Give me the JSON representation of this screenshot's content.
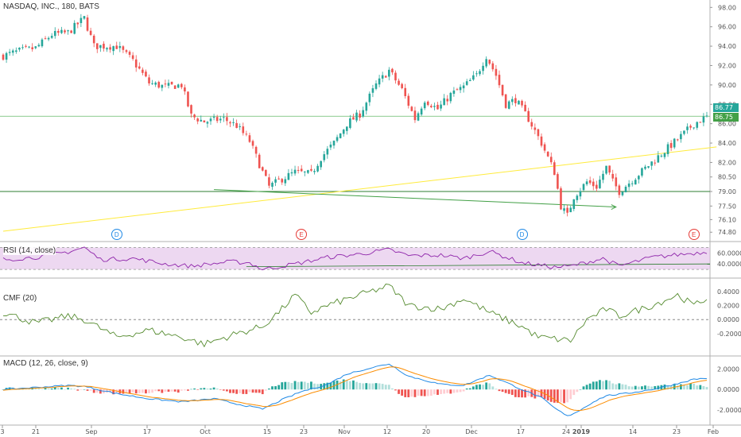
{
  "title": "NASDAQ, INC., 180, BATS",
  "colors": {
    "up": "#26a69a",
    "down": "#ef5350",
    "rsi": "#8e24aa",
    "cmf": "#558b2f",
    "macd": "#1e88e5",
    "signal": "#fb8c00",
    "trend_yellow": "#ffeb3b",
    "trend_green": "#43a047",
    "hline": "#2e7d32",
    "price_line": "#66bb6a",
    "dividend": "#1e88e5",
    "earnings": "#e53935"
  },
  "price_tags": {
    "current": "86.77",
    "other": "86.75"
  },
  "panes": {
    "rsi": {
      "label": "RSI (14, close)",
      "ticks": [
        "60.0000",
        "40.0000"
      ],
      "band": [
        30,
        70
      ]
    },
    "cmf": {
      "label": "CMF (20)",
      "ticks": [
        "0.4000",
        "0.2000",
        "0.0000",
        "-0.2000"
      ]
    },
    "macd": {
      "label": "MACD (12, 26, close, 9)",
      "ticks": [
        "2.0000",
        "0.0000",
        "-2.0000"
      ]
    }
  },
  "events": [
    {
      "label": "D",
      "type": "dividend",
      "date_index": 35
    },
    {
      "label": "E",
      "type": "earnings",
      "date_index": 92
    },
    {
      "label": "D",
      "type": "dividend",
      "date_index": 160
    },
    {
      "label": "E",
      "type": "earnings",
      "date_index": 213
    }
  ],
  "chart_data": {
    "type": "candlestick",
    "title": "NASDAQ, INC., 180, BATS",
    "ylim": [
      74.0,
      98.6
    ],
    "y_ticks": [
      "98.00",
      "96.00",
      "94.00",
      "92.00",
      "90.00",
      "88.00",
      "86.00",
      "84.00",
      "82.00",
      "80.50",
      "79.00",
      "77.50",
      "76.10",
      "74.80"
    ],
    "x_tick_labels": [
      "3",
      "21",
      "Sep",
      "17",
      "Oct",
      "15",
      "23",
      "Nov",
      "12",
      "20",
      "Dec",
      "17",
      "24",
      "2019",
      "14",
      "23",
      "Feb"
    ],
    "price_keypoints": [
      [
        0,
        93.0
      ],
      [
        5,
        93.5
      ],
      [
        10,
        93.8
      ],
      [
        15,
        95.2
      ],
      [
        20,
        95.4
      ],
      [
        25,
        96.9
      ],
      [
        28,
        94.0
      ],
      [
        35,
        94.0
      ],
      [
        40,
        92.5
      ],
      [
        45,
        90.2
      ],
      [
        50,
        89.8
      ],
      [
        55,
        90.0
      ],
      [
        58,
        86.8
      ],
      [
        62,
        86.2
      ],
      [
        68,
        86.5
      ],
      [
        72,
        85.8
      ],
      [
        76,
        84.2
      ],
      [
        80,
        81.0
      ],
      [
        82,
        79.5
      ],
      [
        86,
        80.3
      ],
      [
        90,
        81.0
      ],
      [
        95,
        80.8
      ],
      [
        98,
        82.5
      ],
      [
        102,
        84.0
      ],
      [
        106,
        86.0
      ],
      [
        110,
        87.0
      ],
      [
        115,
        90.0
      ],
      [
        119,
        91.5
      ],
      [
        123,
        89.5
      ],
      [
        127,
        86.5
      ],
      [
        130,
        88.5
      ],
      [
        134,
        87.5
      ],
      [
        138,
        89.0
      ],
      [
        142,
        89.8
      ],
      [
        146,
        91.0
      ],
      [
        149,
        93.0
      ],
      [
        152,
        91.0
      ],
      [
        155,
        88.0
      ],
      [
        158,
        88.5
      ],
      [
        162,
        86.5
      ],
      [
        166,
        84.0
      ],
      [
        170,
        81.0
      ],
      [
        172,
        77.5
      ],
      [
        174,
        76.5
      ],
      [
        176,
        78.5
      ],
      [
        180,
        80.0
      ],
      [
        183,
        79.5
      ],
      [
        186,
        81.5
      ],
      [
        188,
        80.0
      ],
      [
        190,
        79.0
      ],
      [
        195,
        80.5
      ],
      [
        200,
        82.0
      ],
      [
        205,
        83.5
      ],
      [
        210,
        85.0
      ],
      [
        213,
        86.0
      ],
      [
        217,
        86.7
      ]
    ],
    "horizontal_lines": [
      86.77,
      79.0
    ],
    "trend_lines": [
      {
        "color": "yellow",
        "from": [
          0,
          74.9
        ],
        "to": [
          220,
          83.6
        ]
      },
      {
        "color": "green",
        "from": [
          65,
          79.2
        ],
        "to": [
          189,
          77.4
        ]
      }
    ],
    "rsi_keypoints": [
      [
        0,
        48
      ],
      [
        10,
        52
      ],
      [
        20,
        62
      ],
      [
        25,
        70
      ],
      [
        30,
        48
      ],
      [
        40,
        50
      ],
      [
        50,
        40
      ],
      [
        58,
        36
      ],
      [
        70,
        44
      ],
      [
        76,
        42
      ],
      [
        80,
        30
      ],
      [
        90,
        40
      ],
      [
        100,
        52
      ],
      [
        110,
        58
      ],
      [
        119,
        66
      ],
      [
        125,
        55
      ],
      [
        135,
        56
      ],
      [
        142,
        50
      ],
      [
        150,
        63
      ],
      [
        160,
        42
      ],
      [
        170,
        34
      ],
      [
        175,
        36
      ],
      [
        185,
        50
      ],
      [
        190,
        36
      ],
      [
        200,
        52
      ],
      [
        210,
        58
      ],
      [
        217,
        62
      ]
    ],
    "cmf_keypoints": [
      [
        0,
        0.1
      ],
      [
        10,
        -0.05
      ],
      [
        20,
        0.05
      ],
      [
        25,
        0.0
      ],
      [
        35,
        -0.25
      ],
      [
        45,
        -0.15
      ],
      [
        55,
        -0.25
      ],
      [
        62,
        -0.35
      ],
      [
        72,
        -0.2
      ],
      [
        80,
        -0.1
      ],
      [
        86,
        0.15
      ],
      [
        90,
        0.35
      ],
      [
        95,
        0.1
      ],
      [
        100,
        0.2
      ],
      [
        110,
        0.35
      ],
      [
        119,
        0.48
      ],
      [
        125,
        0.2
      ],
      [
        135,
        0.15
      ],
      [
        142,
        0.3
      ],
      [
        150,
        0.1
      ],
      [
        160,
        -0.1
      ],
      [
        165,
        -0.25
      ],
      [
        175,
        -0.3
      ],
      [
        180,
        0.0
      ],
      [
        186,
        0.15
      ],
      [
        190,
        0.05
      ],
      [
        200,
        0.2
      ],
      [
        208,
        0.35
      ],
      [
        213,
        0.2
      ],
      [
        217,
        0.3
      ]
    ],
    "macd_keypoints": [
      [
        0,
        0.0
      ],
      [
        10,
        0.2
      ],
      [
        20,
        0.4
      ],
      [
        25,
        0.3
      ],
      [
        35,
        -0.4
      ],
      [
        45,
        -0.9
      ],
      [
        55,
        -1.2
      ],
      [
        65,
        -0.9
      ],
      [
        72,
        -1.4
      ],
      [
        80,
        -1.9
      ],
      [
        86,
        -1.0
      ],
      [
        92,
        -0.2
      ],
      [
        100,
        0.5
      ],
      [
        106,
        1.5
      ],
      [
        112,
        2.0
      ],
      [
        119,
        2.5
      ],
      [
        125,
        1.3
      ],
      [
        135,
        0.5
      ],
      [
        142,
        0.4
      ],
      [
        150,
        1.4
      ],
      [
        160,
        0.0
      ],
      [
        166,
        -0.8
      ],
      [
        170,
        -1.8
      ],
      [
        174,
        -2.6
      ],
      [
        178,
        -2.0
      ],
      [
        182,
        -1.2
      ],
      [
        186,
        -0.6
      ],
      [
        192,
        -0.4
      ],
      [
        200,
        0.0
      ],
      [
        207,
        0.5
      ],
      [
        213,
        1.0
      ],
      [
        217,
        1.1
      ]
    ]
  }
}
